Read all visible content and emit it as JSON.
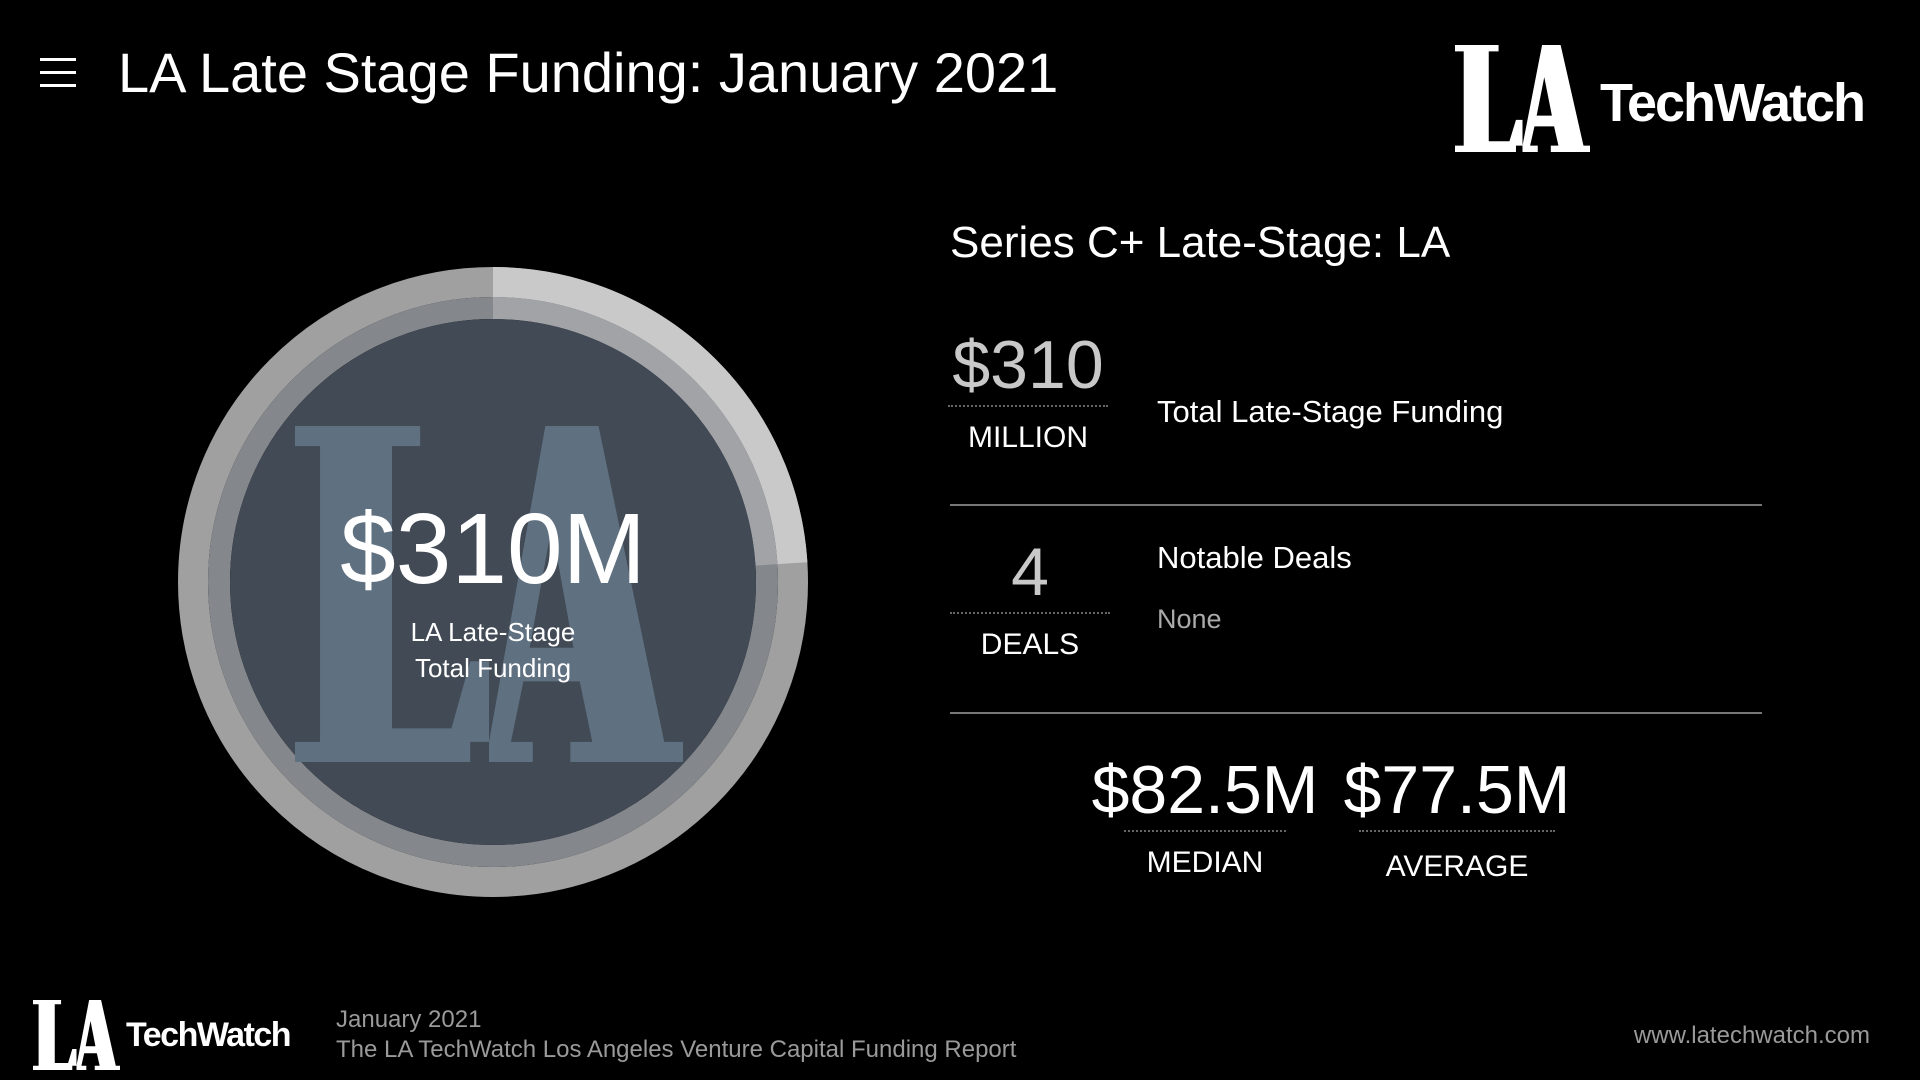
{
  "header": {
    "title": "LA Late Stage Funding: January 2021",
    "menu_icon": "hamburger-icon"
  },
  "logo": {
    "la": "LA",
    "techwatch": "TechWatch"
  },
  "donut": {
    "value": "$310M",
    "label_line1": "LA Late-Stage",
    "label_line2": "Total Funding",
    "watermark": "LA",
    "highlight_fraction": 0.24,
    "colors": {
      "outer": "#a0a0a0",
      "outer_highlight": "#c9c9c9",
      "inner": "#84878c",
      "inner_highlight": "#a1a3a7",
      "disc": "#414a55",
      "watermark": "#5f7080"
    }
  },
  "section": {
    "title": "Series C+ Late-Stage: LA",
    "total": {
      "value": "$310",
      "unit": "MILLION",
      "label": "Total Late-Stage Funding"
    },
    "deals": {
      "value": "4",
      "unit": "DEALS",
      "label": "Notable Deals",
      "detail": "None"
    },
    "median": {
      "value": "$82.5M",
      "label": "MEDIAN"
    },
    "average": {
      "value": "$77.5M",
      "label": "AVERAGE"
    }
  },
  "footer": {
    "date": "January 2021",
    "report": "The LA TechWatch Los Angeles Venture Capital Funding Report",
    "url": "www.latechwatch.com"
  }
}
